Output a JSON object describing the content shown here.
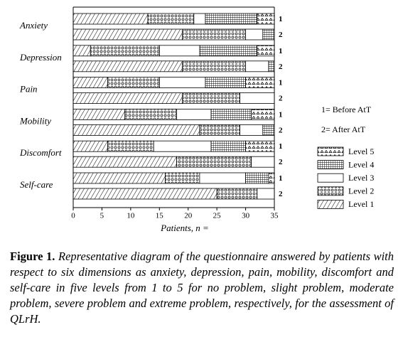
{
  "chart_data": {
    "type": "stacked-barh",
    "categories": [
      "Anxiety",
      "Depression",
      "Pain",
      "Mobility",
      "Discomfort",
      "Self-care"
    ],
    "rows": [
      "1",
      "2"
    ],
    "row_legend": [
      "1= Before AtT",
      "2= After AtT"
    ],
    "series": [
      {
        "name": "Level 1",
        "pattern": "hatch",
        "color": "#000000",
        "values": [
          [
            13,
            19
          ],
          [
            3,
            19
          ],
          [
            6,
            19
          ],
          [
            9,
            22
          ],
          [
            6,
            18
          ],
          [
            16,
            25
          ]
        ]
      },
      {
        "name": "Level 2",
        "pattern": "dots",
        "color": "#000000",
        "values": [
          [
            8,
            11
          ],
          [
            12,
            11
          ],
          [
            9,
            10
          ],
          [
            9,
            7
          ],
          [
            8,
            13
          ],
          [
            6,
            7
          ]
        ]
      },
      {
        "name": "Level 3",
        "pattern": "plain",
        "color": "#000000",
        "values": [
          [
            2,
            3
          ],
          [
            7,
            4
          ],
          [
            8,
            6
          ],
          [
            6,
            4
          ],
          [
            10,
            4
          ],
          [
            8,
            3
          ]
        ]
      },
      {
        "name": "Level 4",
        "pattern": "grid",
        "color": "#000000",
        "values": [
          [
            9,
            2
          ],
          [
            10,
            1
          ],
          [
            7,
            0
          ],
          [
            7,
            2
          ],
          [
            6,
            0
          ],
          [
            4,
            0
          ]
        ]
      },
      {
        "name": "Level 5",
        "pattern": "triangles",
        "color": "#000000",
        "values": [
          [
            3,
            0
          ],
          [
            3,
            0
          ],
          [
            5,
            0
          ],
          [
            4,
            0
          ],
          [
            5,
            0
          ],
          [
            1,
            0
          ]
        ]
      }
    ],
    "xlabel": "Patients, n =",
    "xlim": [
      0,
      35
    ],
    "xticks": [
      0,
      5,
      10,
      15,
      20,
      25,
      30,
      35
    ],
    "grid": false
  },
  "caption": {
    "label": "Figure 1.",
    "text": "Representative diagram of the questionnaire answered by patients with respect to six dimensions as anxiety, depression, pain, mobility, discomfort and self-care in five levels from 1 to 5 for no problem, slight problem, moderate problem, severe problem and extreme problem, respectively, for the assessment of QLrH."
  }
}
